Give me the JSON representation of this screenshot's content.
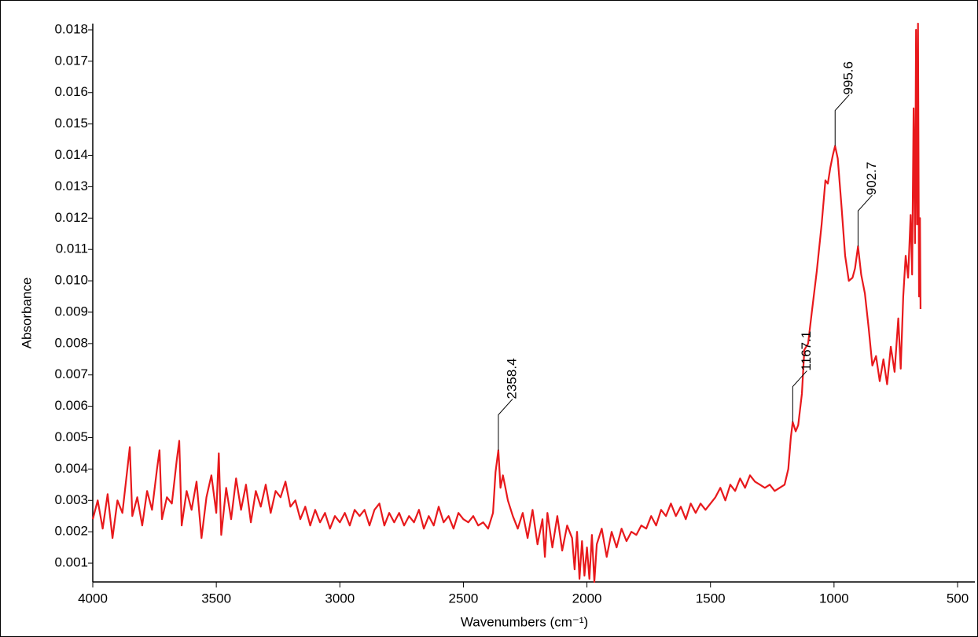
{
  "chart_data": {
    "type": "line",
    "x_label": "Wavenumbers (cm⁻¹)",
    "y_label": "Absorbance",
    "color": "#e8191c",
    "xlim": [
      4000,
      430
    ],
    "ylim": [
      0.0004,
      0.0182
    ],
    "xticks": [
      4000,
      3500,
      3000,
      2500,
      2000,
      1500,
      1000,
      500
    ],
    "yticks": [
      0.001,
      0.002,
      0.003,
      0.004,
      0.005,
      0.006,
      0.007,
      0.008,
      0.009,
      {
        "value": 0.01,
        "label": "0.010"
      },
      0.011,
      0.012,
      0.013,
      0.014,
      0.015,
      0.016,
      0.017,
      0.018
    ],
    "x": [
      4000,
      3980,
      3960,
      3940,
      3920,
      3900,
      3880,
      3860,
      3850,
      3840,
      3820,
      3800,
      3780,
      3760,
      3740,
      3730,
      3720,
      3700,
      3680,
      3660,
      3650,
      3640,
      3620,
      3600,
      3580,
      3560,
      3540,
      3520,
      3500,
      3490,
      3480,
      3460,
      3440,
      3420,
      3400,
      3380,
      3360,
      3340,
      3320,
      3300,
      3280,
      3260,
      3240,
      3220,
      3200,
      3180,
      3160,
      3140,
      3120,
      3100,
      3080,
      3060,
      3040,
      3020,
      3000,
      2980,
      2960,
      2940,
      2920,
      2900,
      2880,
      2860,
      2840,
      2820,
      2800,
      2780,
      2760,
      2740,
      2720,
      2700,
      2680,
      2660,
      2640,
      2620,
      2600,
      2580,
      2560,
      2540,
      2520,
      2500,
      2480,
      2460,
      2440,
      2420,
      2400,
      2380,
      2370,
      2358.4,
      2350,
      2340,
      2330,
      2320,
      2300,
      2280,
      2260,
      2240,
      2220,
      2200,
      2180,
      2170,
      2160,
      2140,
      2120,
      2100,
      2080,
      2060,
      2050,
      2040,
      2030,
      2020,
      2010,
      2000,
      1990,
      1980,
      1970,
      1960,
      1940,
      1920,
      1900,
      1880,
      1860,
      1840,
      1820,
      1800,
      1780,
      1760,
      1740,
      1720,
      1700,
      1680,
      1660,
      1640,
      1620,
      1600,
      1580,
      1560,
      1540,
      1520,
      1500,
      1480,
      1460,
      1440,
      1420,
      1400,
      1380,
      1360,
      1340,
      1320,
      1300,
      1280,
      1260,
      1240,
      1220,
      1200,
      1185,
      1175,
      1167.1,
      1155,
      1145,
      1130,
      1120,
      1105,
      1090,
      1070,
      1050,
      1035,
      1025,
      1015,
      1005,
      995.6,
      985,
      970,
      955,
      940,
      925,
      915,
      902.7,
      890,
      875,
      860,
      845,
      830,
      815,
      800,
      785,
      770,
      755,
      740,
      730,
      720,
      710,
      700,
      690,
      684,
      678,
      672,
      668,
      664,
      660,
      656,
      652,
      650
    ],
    "values": [
      0.0024,
      0.003,
      0.0021,
      0.0032,
      0.0018,
      0.003,
      0.0026,
      0.004,
      0.0047,
      0.0025,
      0.0031,
      0.0022,
      0.0033,
      0.0027,
      0.004,
      0.0046,
      0.0024,
      0.0031,
      0.0029,
      0.0043,
      0.0049,
      0.0022,
      0.0033,
      0.0027,
      0.0036,
      0.0018,
      0.0031,
      0.0038,
      0.0026,
      0.0045,
      0.0019,
      0.0034,
      0.0024,
      0.0037,
      0.0027,
      0.0035,
      0.0023,
      0.0033,
      0.0028,
      0.0035,
      0.0026,
      0.0033,
      0.0031,
      0.0036,
      0.0028,
      0.003,
      0.0024,
      0.0028,
      0.0022,
      0.0027,
      0.0023,
      0.0026,
      0.0021,
      0.0025,
      0.0023,
      0.0026,
      0.0022,
      0.0027,
      0.0025,
      0.0027,
      0.0022,
      0.0027,
      0.0029,
      0.0022,
      0.0026,
      0.0023,
      0.0026,
      0.0022,
      0.0025,
      0.0023,
      0.0027,
      0.0021,
      0.0025,
      0.0022,
      0.0028,
      0.0023,
      0.0025,
      0.0021,
      0.0026,
      0.0024,
      0.0023,
      0.0025,
      0.0022,
      0.0023,
      0.0021,
      0.0026,
      0.0039,
      0.0046,
      0.0034,
      0.0038,
      0.0034,
      0.003,
      0.0025,
      0.0021,
      0.0026,
      0.0018,
      0.0027,
      0.0016,
      0.0024,
      0.0012,
      0.0026,
      0.0015,
      0.0025,
      0.0014,
      0.0022,
      0.0018,
      0.0008,
      0.002,
      0.0005,
      0.0017,
      0.0006,
      0.0015,
      0.0005,
      0.0019,
      0.0004,
      0.0016,
      0.0021,
      0.0012,
      0.002,
      0.0015,
      0.0021,
      0.0017,
      0.002,
      0.0019,
      0.0022,
      0.0021,
      0.0025,
      0.0022,
      0.0027,
      0.0025,
      0.0029,
      0.0025,
      0.0028,
      0.0024,
      0.0029,
      0.0026,
      0.0029,
      0.0027,
      0.0029,
      0.0031,
      0.0034,
      0.003,
      0.0035,
      0.0033,
      0.0037,
      0.0034,
      0.0038,
      0.0036,
      0.0035,
      0.0034,
      0.0035,
      0.0033,
      0.0034,
      0.0035,
      0.004,
      0.005,
      0.0055,
      0.0052,
      0.0054,
      0.0064,
      0.0078,
      0.008,
      0.009,
      0.0103,
      0.0118,
      0.0132,
      0.0131,
      0.0136,
      0.014,
      0.0143,
      0.0139,
      0.0124,
      0.0108,
      0.01,
      0.0101,
      0.0104,
      0.0111,
      0.0102,
      0.0096,
      0.0085,
      0.0073,
      0.0076,
      0.0068,
      0.0075,
      0.0067,
      0.0079,
      0.0071,
      0.0088,
      0.0072,
      0.0095,
      0.0108,
      0.0101,
      0.0121,
      0.0102,
      0.0155,
      0.0112,
      0.018,
      0.0118,
      0.0182,
      0.0095,
      0.012,
      0.0091
    ],
    "annotations": [
      {
        "x": 2358.4,
        "y": 0.0046
      },
      {
        "x": 1167.1,
        "y": 0.0055
      },
      {
        "x": 995.6,
        "y": 0.0143
      },
      {
        "x": 902.7,
        "y": 0.0111
      }
    ]
  }
}
